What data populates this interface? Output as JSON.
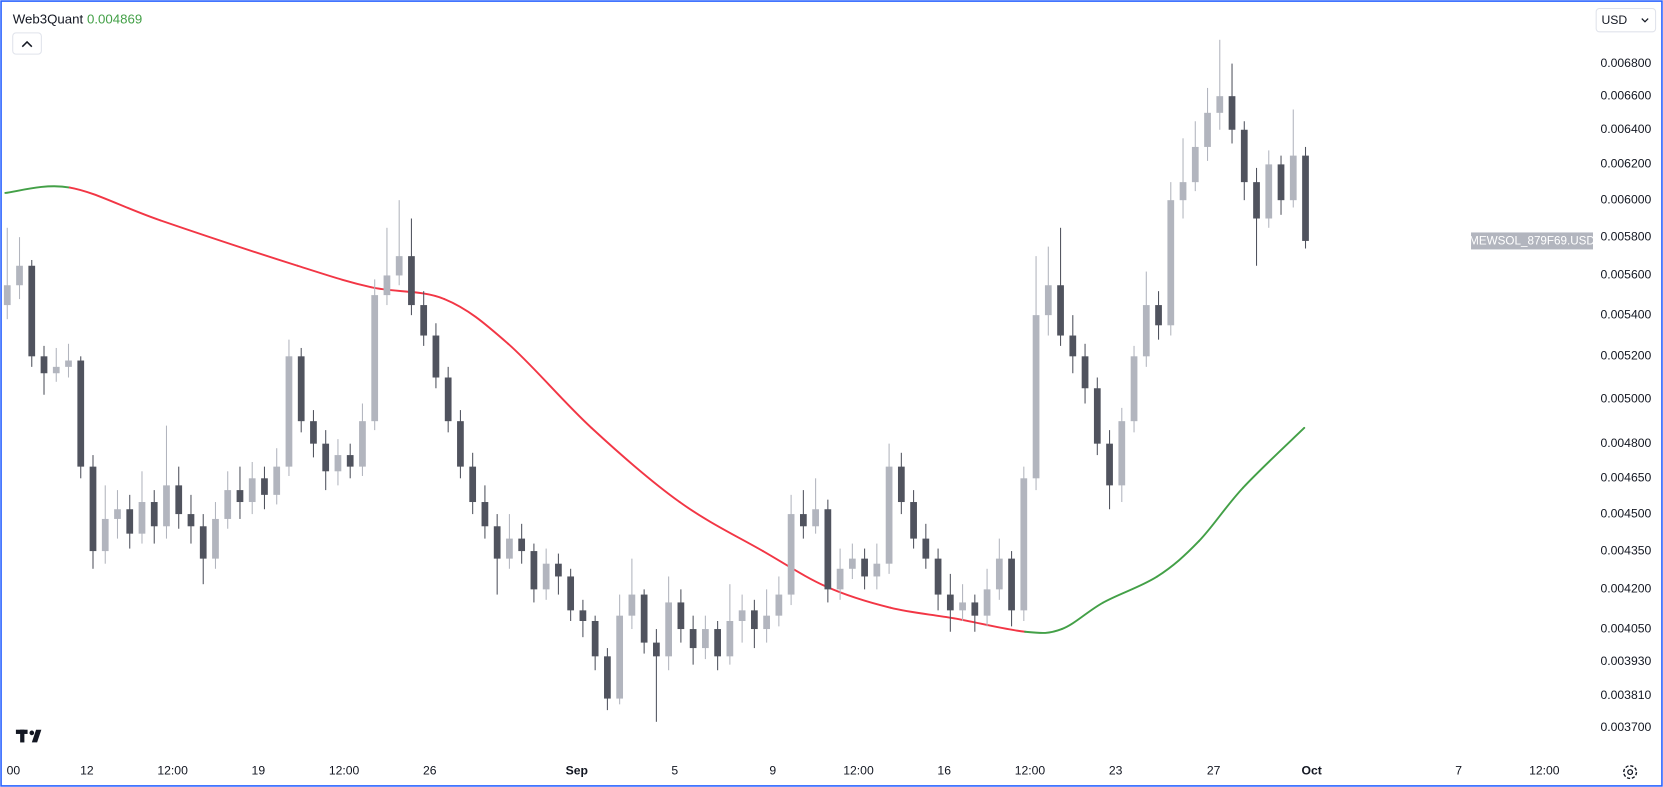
{
  "chart_data": {
    "type": "candlestick",
    "indicator": {
      "name": "Web3Quant",
      "value": 0.004869,
      "color": "#43a047"
    },
    "currency": "USD",
    "symbol": "MEWSOL_879F69.USD",
    "up_color": "#b2b5be",
    "down_color": "#50535e",
    "log_scale": true,
    "xlim": [
      8.67,
      73.4
    ],
    "ylim": [
      0.003615,
      0.007173
    ],
    "xticks": [
      {
        "value": 9,
        "label": "00"
      },
      {
        "value": 12,
        "label": "12"
      },
      {
        "value": 15.5,
        "label": "12:00"
      },
      {
        "value": 19,
        "label": "19"
      },
      {
        "value": 22.5,
        "label": "12:00"
      },
      {
        "value": 26,
        "label": "26"
      },
      {
        "value": 32,
        "label": "Sep"
      },
      {
        "value": 36,
        "label": "5"
      },
      {
        "value": 40,
        "label": "9"
      },
      {
        "value": 43.5,
        "label": "12:00"
      },
      {
        "value": 47,
        "label": "16"
      },
      {
        "value": 50.5,
        "label": "12:00"
      },
      {
        "value": 54,
        "label": "23"
      },
      {
        "value": 58,
        "label": "27"
      },
      {
        "value": 62,
        "label": "Oct"
      },
      {
        "value": 68,
        "label": "7"
      },
      {
        "value": 71.5,
        "label": "12:00"
      }
    ],
    "yticks": [
      {
        "value": 0.0068,
        "label": "0.006800"
      },
      {
        "value": 0.0066,
        "label": "0.006600"
      },
      {
        "value": 0.0064,
        "label": "0.006400"
      },
      {
        "value": 0.0062,
        "label": "0.006200"
      },
      {
        "value": 0.006,
        "label": "0.006000"
      },
      {
        "value": 0.0058,
        "label": "0.005800"
      },
      {
        "value": 0.0056,
        "label": "0.005600"
      },
      {
        "value": 0.0054,
        "label": "0.005400"
      },
      {
        "value": 0.0052,
        "label": "0.005200"
      },
      {
        "value": 0.005,
        "label": "0.005000"
      },
      {
        "value": 0.0048,
        "label": "0.004800"
      },
      {
        "value": 0.00465,
        "label": "0.004650"
      },
      {
        "value": 0.0045,
        "label": "0.004500"
      },
      {
        "value": 0.00435,
        "label": "0.004350"
      },
      {
        "value": 0.0042,
        "label": "0.004200"
      },
      {
        "value": 0.00405,
        "label": "0.004050"
      },
      {
        "value": 0.00393,
        "label": "0.003930"
      },
      {
        "value": 0.00381,
        "label": "0.003810"
      },
      {
        "value": 0.0037,
        "label": "0.003700"
      }
    ],
    "x": [
      8.75,
      9.25,
      9.75,
      10.25,
      10.75,
      11.25,
      11.75,
      12.25,
      12.75,
      13.25,
      13.75,
      14.25,
      14.75,
      15.25,
      15.75,
      16.25,
      16.75,
      17.25,
      17.75,
      18.25,
      18.75,
      19.25,
      19.75,
      20.25,
      20.75,
      21.25,
      21.75,
      22.25,
      22.75,
      23.25,
      23.75,
      24.25,
      24.75,
      25.25,
      25.75,
      26.25,
      26.75,
      27.25,
      27.75,
      28.25,
      28.75,
      29.25,
      29.75,
      30.25,
      30.75,
      31.25,
      31.75,
      32.25,
      32.75,
      33.25,
      33.75,
      34.25,
      34.75,
      35.25,
      35.75,
      36.25,
      36.75,
      37.25,
      37.75,
      38.25,
      38.75,
      39.25,
      39.75,
      40.25,
      40.75,
      41.25,
      41.75,
      42.25,
      42.75,
      43.25,
      43.75,
      44.25,
      44.75,
      45.25,
      45.75,
      46.25,
      46.75,
      47.25,
      47.75,
      48.25,
      48.75,
      49.25,
      49.75,
      50.25,
      50.75,
      51.25,
      51.75,
      52.25,
      52.75,
      53.25,
      53.75,
      54.25,
      54.75,
      55.25,
      55.75,
      56.25,
      56.75,
      57.25,
      57.75,
      58.25,
      58.75,
      59.25,
      59.75,
      60.25,
      60.75,
      61.25,
      61.75
    ],
    "ohlc": [
      [
        0.00545,
        0.00585,
        0.00538,
        0.00555
      ],
      [
        0.00555,
        0.0058,
        0.00548,
        0.00565
      ],
      [
        0.00565,
        0.00568,
        0.00515,
        0.0052
      ],
      [
        0.0052,
        0.00525,
        0.00502,
        0.00512
      ],
      [
        0.00512,
        0.00524,
        0.00508,
        0.00515
      ],
      [
        0.00515,
        0.00526,
        0.0051,
        0.00518
      ],
      [
        0.00518,
        0.0052,
        0.00465,
        0.0047
      ],
      [
        0.0047,
        0.00475,
        0.00428,
        0.00435
      ],
      [
        0.00435,
        0.00462,
        0.0043,
        0.00448
      ],
      [
        0.00448,
        0.0046,
        0.0044,
        0.00452
      ],
      [
        0.00452,
        0.00458,
        0.00436,
        0.00442
      ],
      [
        0.00442,
        0.00468,
        0.00438,
        0.00455
      ],
      [
        0.00455,
        0.0046,
        0.00438,
        0.00445
      ],
      [
        0.00445,
        0.00488,
        0.0044,
        0.00462
      ],
      [
        0.00462,
        0.0047,
        0.00444,
        0.0045
      ],
      [
        0.0045,
        0.00458,
        0.00438,
        0.00445
      ],
      [
        0.00445,
        0.0045,
        0.00422,
        0.00432
      ],
      [
        0.00432,
        0.00455,
        0.00428,
        0.00448
      ],
      [
        0.00448,
        0.00468,
        0.00444,
        0.0046
      ],
      [
        0.0046,
        0.0047,
        0.00448,
        0.00455
      ],
      [
        0.00455,
        0.00472,
        0.0045,
        0.00465
      ],
      [
        0.00465,
        0.0047,
        0.00452,
        0.00458
      ],
      [
        0.00458,
        0.00478,
        0.00454,
        0.0047
      ],
      [
        0.0047,
        0.00528,
        0.00466,
        0.0052
      ],
      [
        0.0052,
        0.00524,
        0.00485,
        0.0049
      ],
      [
        0.0049,
        0.00495,
        0.00474,
        0.0048
      ],
      [
        0.0048,
        0.00486,
        0.0046,
        0.00468
      ],
      [
        0.00468,
        0.00482,
        0.00462,
        0.00475
      ],
      [
        0.00475,
        0.0048,
        0.00465,
        0.0047
      ],
      [
        0.0047,
        0.00498,
        0.00466,
        0.0049
      ],
      [
        0.0049,
        0.00558,
        0.00486,
        0.0055
      ],
      [
        0.0055,
        0.00585,
        0.00545,
        0.0056
      ],
      [
        0.0056,
        0.006,
        0.00555,
        0.0057
      ],
      [
        0.0057,
        0.0059,
        0.0054,
        0.00545
      ],
      [
        0.00545,
        0.00552,
        0.00525,
        0.0053
      ],
      [
        0.0053,
        0.00536,
        0.00505,
        0.0051
      ],
      [
        0.0051,
        0.00515,
        0.00485,
        0.0049
      ],
      [
        0.0049,
        0.00495,
        0.00465,
        0.0047
      ],
      [
        0.0047,
        0.00476,
        0.0045,
        0.00455
      ],
      [
        0.00455,
        0.00462,
        0.0044,
        0.00445
      ],
      [
        0.00445,
        0.0045,
        0.00418,
        0.00432
      ],
      [
        0.00432,
        0.0045,
        0.00428,
        0.0044
      ],
      [
        0.0044,
        0.00446,
        0.0043,
        0.00435
      ],
      [
        0.00435,
        0.00438,
        0.00415,
        0.0042
      ],
      [
        0.0042,
        0.00436,
        0.00416,
        0.0043
      ],
      [
        0.0043,
        0.00434,
        0.00418,
        0.00425
      ],
      [
        0.00425,
        0.00428,
        0.00408,
        0.00412
      ],
      [
        0.00412,
        0.00416,
        0.00402,
        0.00408
      ],
      [
        0.00408,
        0.0041,
        0.0039,
        0.00395
      ],
      [
        0.00395,
        0.00398,
        0.00376,
        0.0038
      ],
      [
        0.0038,
        0.00418,
        0.00378,
        0.0041
      ],
      [
        0.0041,
        0.00432,
        0.00405,
        0.00418
      ],
      [
        0.00418,
        0.0042,
        0.00396,
        0.004
      ],
      [
        0.004,
        0.00405,
        0.00372,
        0.00395
      ],
      [
        0.00395,
        0.00425,
        0.0039,
        0.00415
      ],
      [
        0.00415,
        0.0042,
        0.004,
        0.00405
      ],
      [
        0.00405,
        0.0041,
        0.00392,
        0.00398
      ],
      [
        0.00398,
        0.0041,
        0.00394,
        0.00405
      ],
      [
        0.00405,
        0.00408,
        0.0039,
        0.00395
      ],
      [
        0.00395,
        0.00422,
        0.00392,
        0.00408
      ],
      [
        0.00408,
        0.00418,
        0.004,
        0.00412
      ],
      [
        0.00412,
        0.00416,
        0.00398,
        0.00405
      ],
      [
        0.00405,
        0.0042,
        0.004,
        0.0041
      ],
      [
        0.0041,
        0.00425,
        0.00406,
        0.00418
      ],
      [
        0.00418,
        0.00458,
        0.00414,
        0.0045
      ],
      [
        0.0045,
        0.0046,
        0.0044,
        0.00445
      ],
      [
        0.00445,
        0.00465,
        0.00442,
        0.00452
      ],
      [
        0.00452,
        0.00456,
        0.00415,
        0.0042
      ],
      [
        0.0042,
        0.00436,
        0.00416,
        0.00428
      ],
      [
        0.00428,
        0.00438,
        0.00424,
        0.00432
      ],
      [
        0.00432,
        0.00436,
        0.0042,
        0.00425
      ],
      [
        0.00425,
        0.00438,
        0.0042,
        0.0043
      ],
      [
        0.0043,
        0.0048,
        0.00426,
        0.0047
      ],
      [
        0.0047,
        0.00476,
        0.0045,
        0.00455
      ],
      [
        0.00455,
        0.0046,
        0.00436,
        0.0044
      ],
      [
        0.0044,
        0.00446,
        0.00428,
        0.00432
      ],
      [
        0.00432,
        0.00436,
        0.00412,
        0.00418
      ],
      [
        0.00418,
        0.00426,
        0.00404,
        0.00412
      ],
      [
        0.00412,
        0.00422,
        0.00408,
        0.00415
      ],
      [
        0.00415,
        0.00418,
        0.00404,
        0.0041
      ],
      [
        0.0041,
        0.00428,
        0.00406,
        0.0042
      ],
      [
        0.0042,
        0.0044,
        0.00416,
        0.00432
      ],
      [
        0.00432,
        0.00435,
        0.00406,
        0.00412
      ],
      [
        0.00412,
        0.0047,
        0.00408,
        0.00465
      ],
      [
        0.00465,
        0.0057,
        0.0046,
        0.0054
      ],
      [
        0.0054,
        0.00575,
        0.0053,
        0.00555
      ],
      [
        0.00555,
        0.00585,
        0.00525,
        0.0053
      ],
      [
        0.0053,
        0.0054,
        0.00512,
        0.0052
      ],
      [
        0.0052,
        0.00526,
        0.00498,
        0.00505
      ],
      [
        0.00505,
        0.0051,
        0.00475,
        0.0048
      ],
      [
        0.0048,
        0.00486,
        0.00452,
        0.00462
      ],
      [
        0.00462,
        0.00496,
        0.00455,
        0.0049
      ],
      [
        0.0049,
        0.00525,
        0.00485,
        0.0052
      ],
      [
        0.0052,
        0.00562,
        0.00515,
        0.00545
      ],
      [
        0.00545,
        0.00552,
        0.00528,
        0.00535
      ],
      [
        0.00535,
        0.0061,
        0.0053,
        0.006
      ],
      [
        0.006,
        0.00635,
        0.0059,
        0.0061
      ],
      [
        0.0061,
        0.00645,
        0.00605,
        0.0063
      ],
      [
        0.0063,
        0.00665,
        0.00622,
        0.0065
      ],
      [
        0.0065,
        0.00695,
        0.0064,
        0.0066
      ],
      [
        0.0066,
        0.0068,
        0.00632,
        0.0064
      ],
      [
        0.0064,
        0.00645,
        0.006,
        0.0061
      ],
      [
        0.0061,
        0.00618,
        0.00565,
        0.0059
      ],
      [
        0.0059,
        0.00628,
        0.00585,
        0.0062
      ],
      [
        0.0062,
        0.00625,
        0.00592,
        0.006
      ],
      [
        0.006,
        0.00652,
        0.00596,
        0.00625
      ],
      [
        0.00625,
        0.0063,
        0.00574,
        0.00578
      ]
    ],
    "indicator_line": {
      "x": [
        8.67,
        11.3,
        15,
        20.6,
        23.6,
        26.6,
        29.2,
        32.6,
        36.2,
        39.6,
        42.2,
        44.8,
        47.4,
        50.3,
        51.8,
        53.5,
        55.7,
        57.4,
        59.2,
        61.7
      ],
      "values": [
        0.00604,
        0.00607,
        0.00589,
        0.00565,
        0.00554,
        0.00548,
        0.00526,
        0.00487,
        0.00455,
        0.00435,
        0.00421,
        0.00413,
        0.00409,
        0.00404,
        0.00405,
        0.00415,
        0.00425,
        0.00439,
        0.00461,
        0.00487
      ],
      "rising_color": "#43a047",
      "falling_color": "#f23645"
    }
  }
}
